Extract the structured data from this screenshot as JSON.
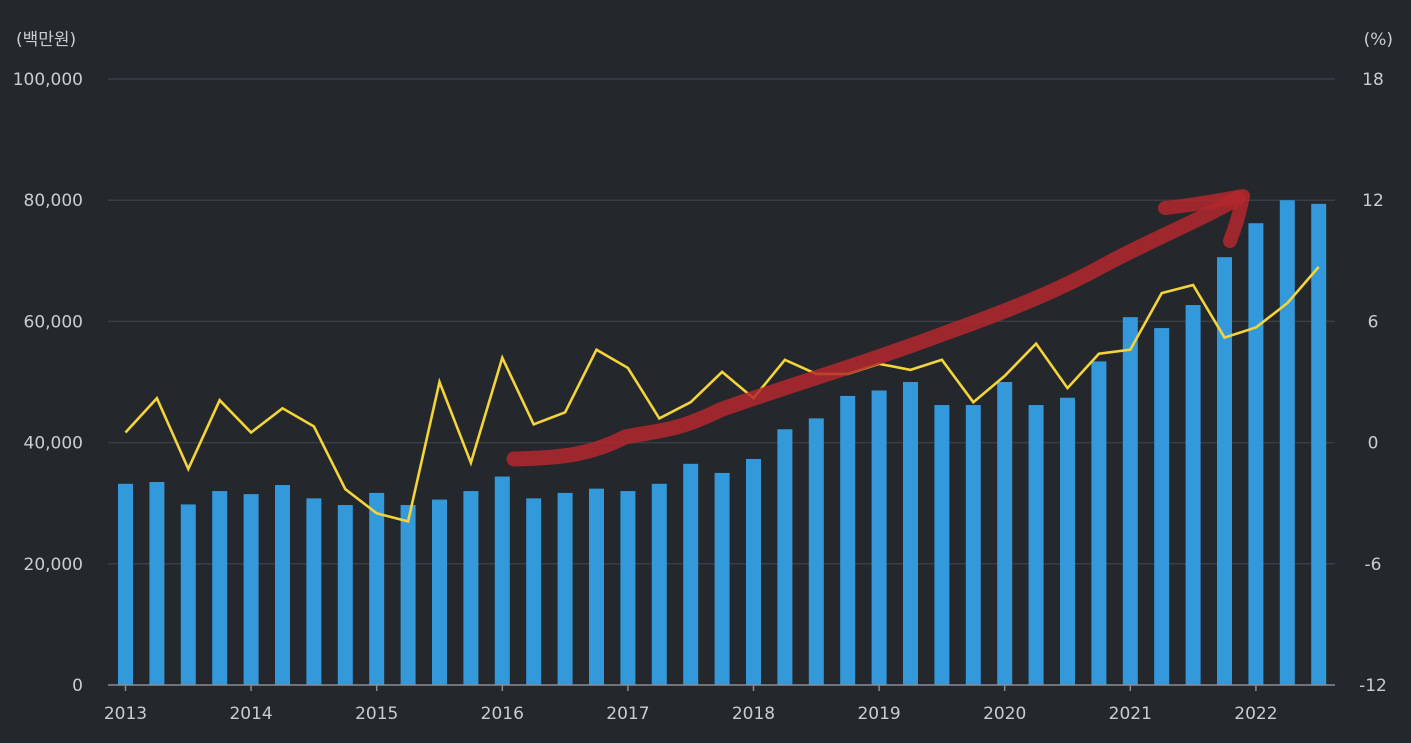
{
  "chart_data": {
    "type": "bar+line",
    "left_unit": "(백만원)",
    "right_unit": "(%)",
    "left_axis": {
      "min": 0,
      "max": 100000,
      "ticks": [
        0,
        20000,
        40000,
        60000,
        80000,
        100000
      ],
      "tick_labels": [
        "0",
        "20,000",
        "40,000",
        "60,000",
        "80,000",
        "100,000"
      ]
    },
    "right_axis": {
      "min": -12,
      "max": 18,
      "ticks": [
        -12,
        -6,
        0,
        6,
        12,
        18
      ],
      "tick_labels": [
        "-12",
        "-6",
        "0",
        "6",
        "12",
        "18"
      ]
    },
    "year_labels": [
      "2013",
      "2014",
      "2015",
      "2016",
      "2017",
      "2018",
      "2019",
      "2020",
      "2021",
      "2022"
    ],
    "periods": 39,
    "series": [
      {
        "name": "bars",
        "axis": "left",
        "color": "#3399db",
        "values": [
          33200,
          33500,
          29800,
          32000,
          31500,
          33000,
          30800,
          29700,
          31700,
          29700,
          30600,
          32000,
          34400,
          30800,
          31700,
          32400,
          32000,
          33200,
          36500,
          35000,
          37300,
          42200,
          44000,
          47700,
          48600,
          50000,
          46200,
          46200,
          50000,
          46200,
          47400,
          53400,
          60700,
          58900,
          62700,
          70600,
          76200,
          80000,
          79400
        ]
      },
      {
        "name": "line",
        "axis": "right",
        "color": "#f3d43a",
        "values": [
          0.5,
          2.2,
          -1.3,
          2.1,
          0.5,
          1.7,
          0.8,
          -2.3,
          -3.5,
          -3.9,
          3.0,
          -1.0,
          4.2,
          0.9,
          1.5,
          4.6,
          3.7,
          1.2,
          2.0,
          3.5,
          2.2,
          4.1,
          3.4,
          3.4,
          3.9,
          3.6,
          4.1,
          2.0,
          3.3,
          4.9,
          2.7,
          4.4,
          4.6,
          7.4,
          7.8,
          5.2,
          5.7,
          6.9,
          8.7
        ]
      }
    ],
    "annotation": {
      "type": "hand-drawn arrow",
      "color": "#b3282d",
      "direction": "upward trend"
    }
  }
}
